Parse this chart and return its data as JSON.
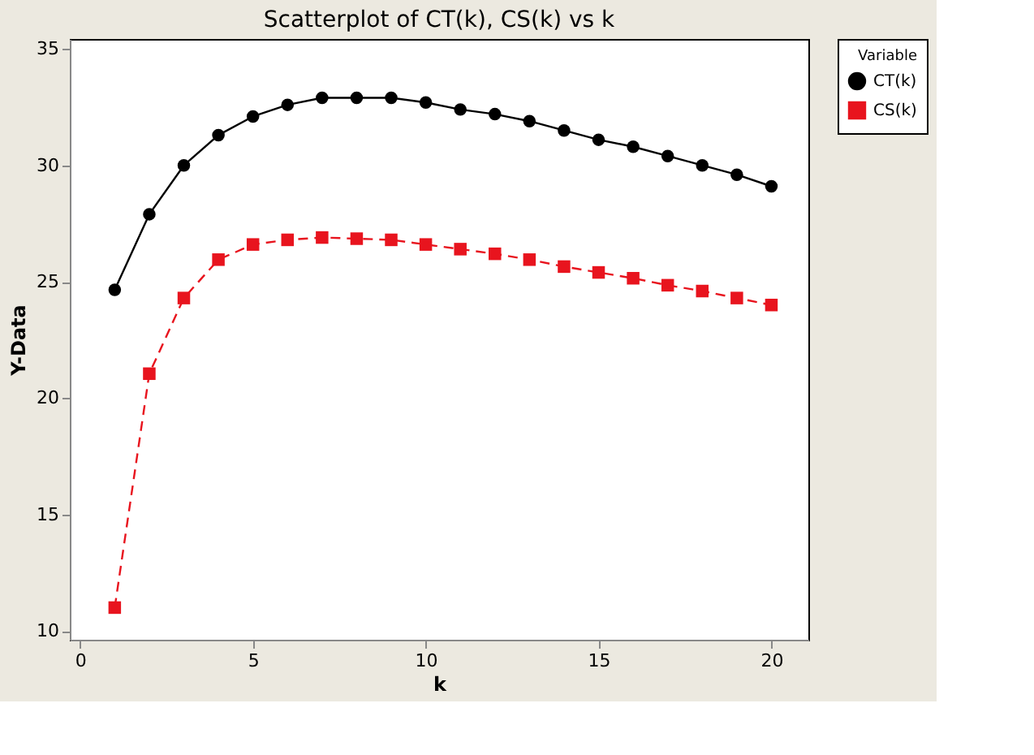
{
  "chart_data": {
    "type": "line",
    "title": "Scatterplot of CT(k), CS(k) vs k",
    "xlabel": "k",
    "ylabel": "Y-Data",
    "legend_title": "Variable",
    "legend": "top right",
    "x": [
      1,
      2,
      3,
      4,
      5,
      6,
      7,
      8,
      9,
      10,
      11,
      12,
      13,
      14,
      15,
      16,
      17,
      18,
      19,
      20
    ],
    "xlim": [
      -0.3,
      21.07
    ],
    "xticks": [
      0,
      5,
      10,
      15,
      20
    ],
    "ylim": [
      9.62,
      35.43
    ],
    "yticks": [
      10,
      15,
      20,
      25,
      30,
      35
    ],
    "grid": false,
    "series": [
      {
        "name": "CT(k)",
        "color": "#000000",
        "marker": "circle",
        "line_style": "solid",
        "values": [
          24.65,
          27.9,
          30.0,
          31.3,
          32.1,
          32.6,
          32.9,
          32.9,
          32.9,
          32.7,
          32.4,
          32.2,
          31.9,
          31.5,
          31.1,
          30.8,
          30.4,
          30.0,
          29.6,
          29.1
        ]
      },
      {
        "name": "CS(k)",
        "color": "#e8141e",
        "marker": "square",
        "line_style": "dashed",
        "values": [
          11.0,
          21.05,
          24.3,
          25.95,
          26.6,
          26.8,
          26.9,
          26.85,
          26.8,
          26.6,
          26.4,
          26.2,
          25.95,
          25.65,
          25.4,
          25.15,
          24.85,
          24.6,
          24.3,
          24.0
        ]
      }
    ]
  }
}
